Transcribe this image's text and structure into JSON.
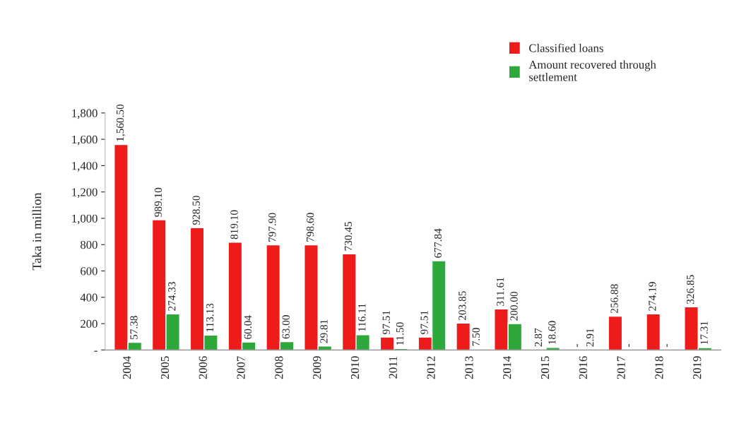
{
  "chart_data": {
    "type": "bar",
    "ylabel": "Taka in million",
    "categories": [
      "2004",
      "2005",
      "2006",
      "2007",
      "2008",
      "2009",
      "2010",
      "2011",
      "2012",
      "2013",
      "2014",
      "2015",
      "2016",
      "2017",
      "2018",
      "2019"
    ],
    "series": [
      {
        "name": "Classified loans",
        "color": "#ee1b1b",
        "values": [
          1560.5,
          989.1,
          928.5,
          819.1,
          797.9,
          798.6,
          730.45,
          97.51,
          97.51,
          203.85,
          311.61,
          2.87,
          null,
          256.88,
          274.19,
          326.85
        ],
        "value_labels": [
          "1,560.50",
          "989.10",
          "928.50",
          "819.10",
          "797.90",
          "798.60",
          "730.45",
          "97.51",
          "97.51",
          "203.85",
          "311.61",
          "2.87",
          "-",
          "256.88",
          "274.19",
          "326.85"
        ]
      },
      {
        "name": "Amount recovered through\nsettlement",
        "color": "#2ea83a",
        "values": [
          57.38,
          274.33,
          113.13,
          60.04,
          63.0,
          29.81,
          116.11,
          11.5,
          677.84,
          7.5,
          200.0,
          18.6,
          2.91,
          null,
          null,
          17.31
        ],
        "value_labels": [
          "57.38",
          "274.33",
          "113.13",
          "60.04",
          "63.00",
          "29.81",
          "116.11",
          "11.50",
          "677.84",
          "7.50",
          "200.00",
          "18.60",
          "2.91",
          "-",
          "-",
          "17.31"
        ]
      }
    ],
    "ylim": [
      0,
      1800
    ],
    "yticks": [
      {
        "value": 0,
        "label": "-"
      },
      200,
      400,
      600,
      800,
      {
        "value": 1000,
        "label": "1,000"
      },
      {
        "value": 1200,
        "label": "1,200"
      },
      {
        "value": 1400,
        "label": "1,400"
      },
      {
        "value": 1600,
        "label": "1,600"
      },
      {
        "value": 1800,
        "label": "1,800"
      }
    ],
    "grid": false,
    "legend": "top right"
  }
}
